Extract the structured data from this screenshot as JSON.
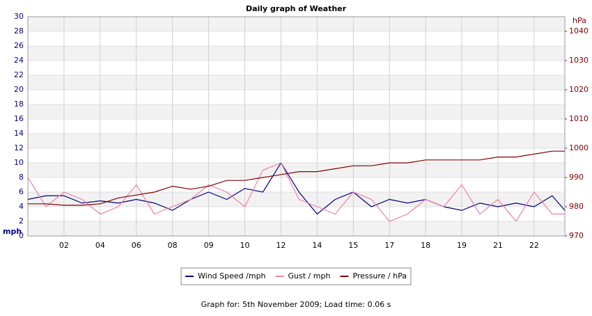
{
  "chart_data": {
    "type": "line",
    "title": "Daily graph of Weather",
    "y_label": "mph",
    "y2_label": "hPa",
    "footer": "Graph for: 5th November 2009; Load time: 0.06 s",
    "x": [
      0,
      0.5,
      1,
      1.5,
      2,
      2.5,
      3,
      3.5,
      4,
      4.5,
      5,
      5.5,
      6,
      6.5,
      7,
      7.5,
      8,
      8.5,
      9,
      9.5,
      10,
      10.5,
      11,
      11.5,
      12,
      12.5,
      13,
      13.5,
      14,
      14.5,
      14.85
    ],
    "xlim": [
      0,
      14.85
    ],
    "xticks": [
      {
        "value": 1,
        "label": "02"
      },
      {
        "value": 2,
        "label": "04"
      },
      {
        "value": 3,
        "label": "06"
      },
      {
        "value": 4,
        "label": "08"
      },
      {
        "value": 5,
        "label": "09"
      },
      {
        "value": 6,
        "label": "10"
      },
      {
        "value": 7,
        "label": "12"
      },
      {
        "value": 8,
        "label": "14"
      },
      {
        "value": 9,
        "label": "15"
      },
      {
        "value": 10,
        "label": "17"
      },
      {
        "value": 11,
        "label": "18"
      },
      {
        "value": 12,
        "label": "19"
      },
      {
        "value": 13,
        "label": "21"
      },
      {
        "value": 14,
        "label": "22"
      }
    ],
    "ylim": [
      0,
      30
    ],
    "yticks": [
      0,
      2,
      4,
      6,
      8,
      10,
      12,
      14,
      16,
      18,
      20,
      22,
      24,
      26,
      28,
      30
    ],
    "y2lim": [
      970,
      1045
    ],
    "y2ticks": [
      970,
      980,
      990,
      1000,
      1010,
      1020,
      1030,
      1040
    ],
    "grid": true,
    "legend": "bottom",
    "series": [
      {
        "name": "Wind Speed /mph",
        "color": "#000080",
        "values": [
          5,
          5.5,
          5.5,
          4.5,
          4.8,
          4.5,
          5,
          4.5,
          3.5,
          5,
          6,
          5,
          6.5,
          6,
          10,
          6,
          3,
          5,
          6,
          4,
          5,
          4.5,
          5,
          4,
          3.5,
          4.5,
          4,
          4.5,
          4,
          5.5,
          3.5
        ]
      },
      {
        "name": "Gust / mph",
        "color": "#f080a8",
        "values": [
          8,
          4,
          6,
          5,
          3,
          4,
          7,
          3,
          4,
          5,
          7,
          6,
          4,
          9,
          10,
          5,
          4,
          3,
          6,
          5,
          2,
          3,
          5,
          4,
          7,
          3,
          5,
          2,
          6,
          3,
          3
        ]
      },
      {
        "name": "Pressure / hPa",
        "color": "#800000",
        "axis": "y2",
        "values": [
          981,
          981,
          980.5,
          980.5,
          981,
          983,
          984,
          985,
          987,
          986,
          987,
          989,
          989,
          990,
          991,
          992,
          992,
          993,
          994,
          994,
          995,
          995,
          996,
          996,
          996,
          996,
          997,
          997,
          998,
          999,
          999
        ]
      }
    ]
  }
}
